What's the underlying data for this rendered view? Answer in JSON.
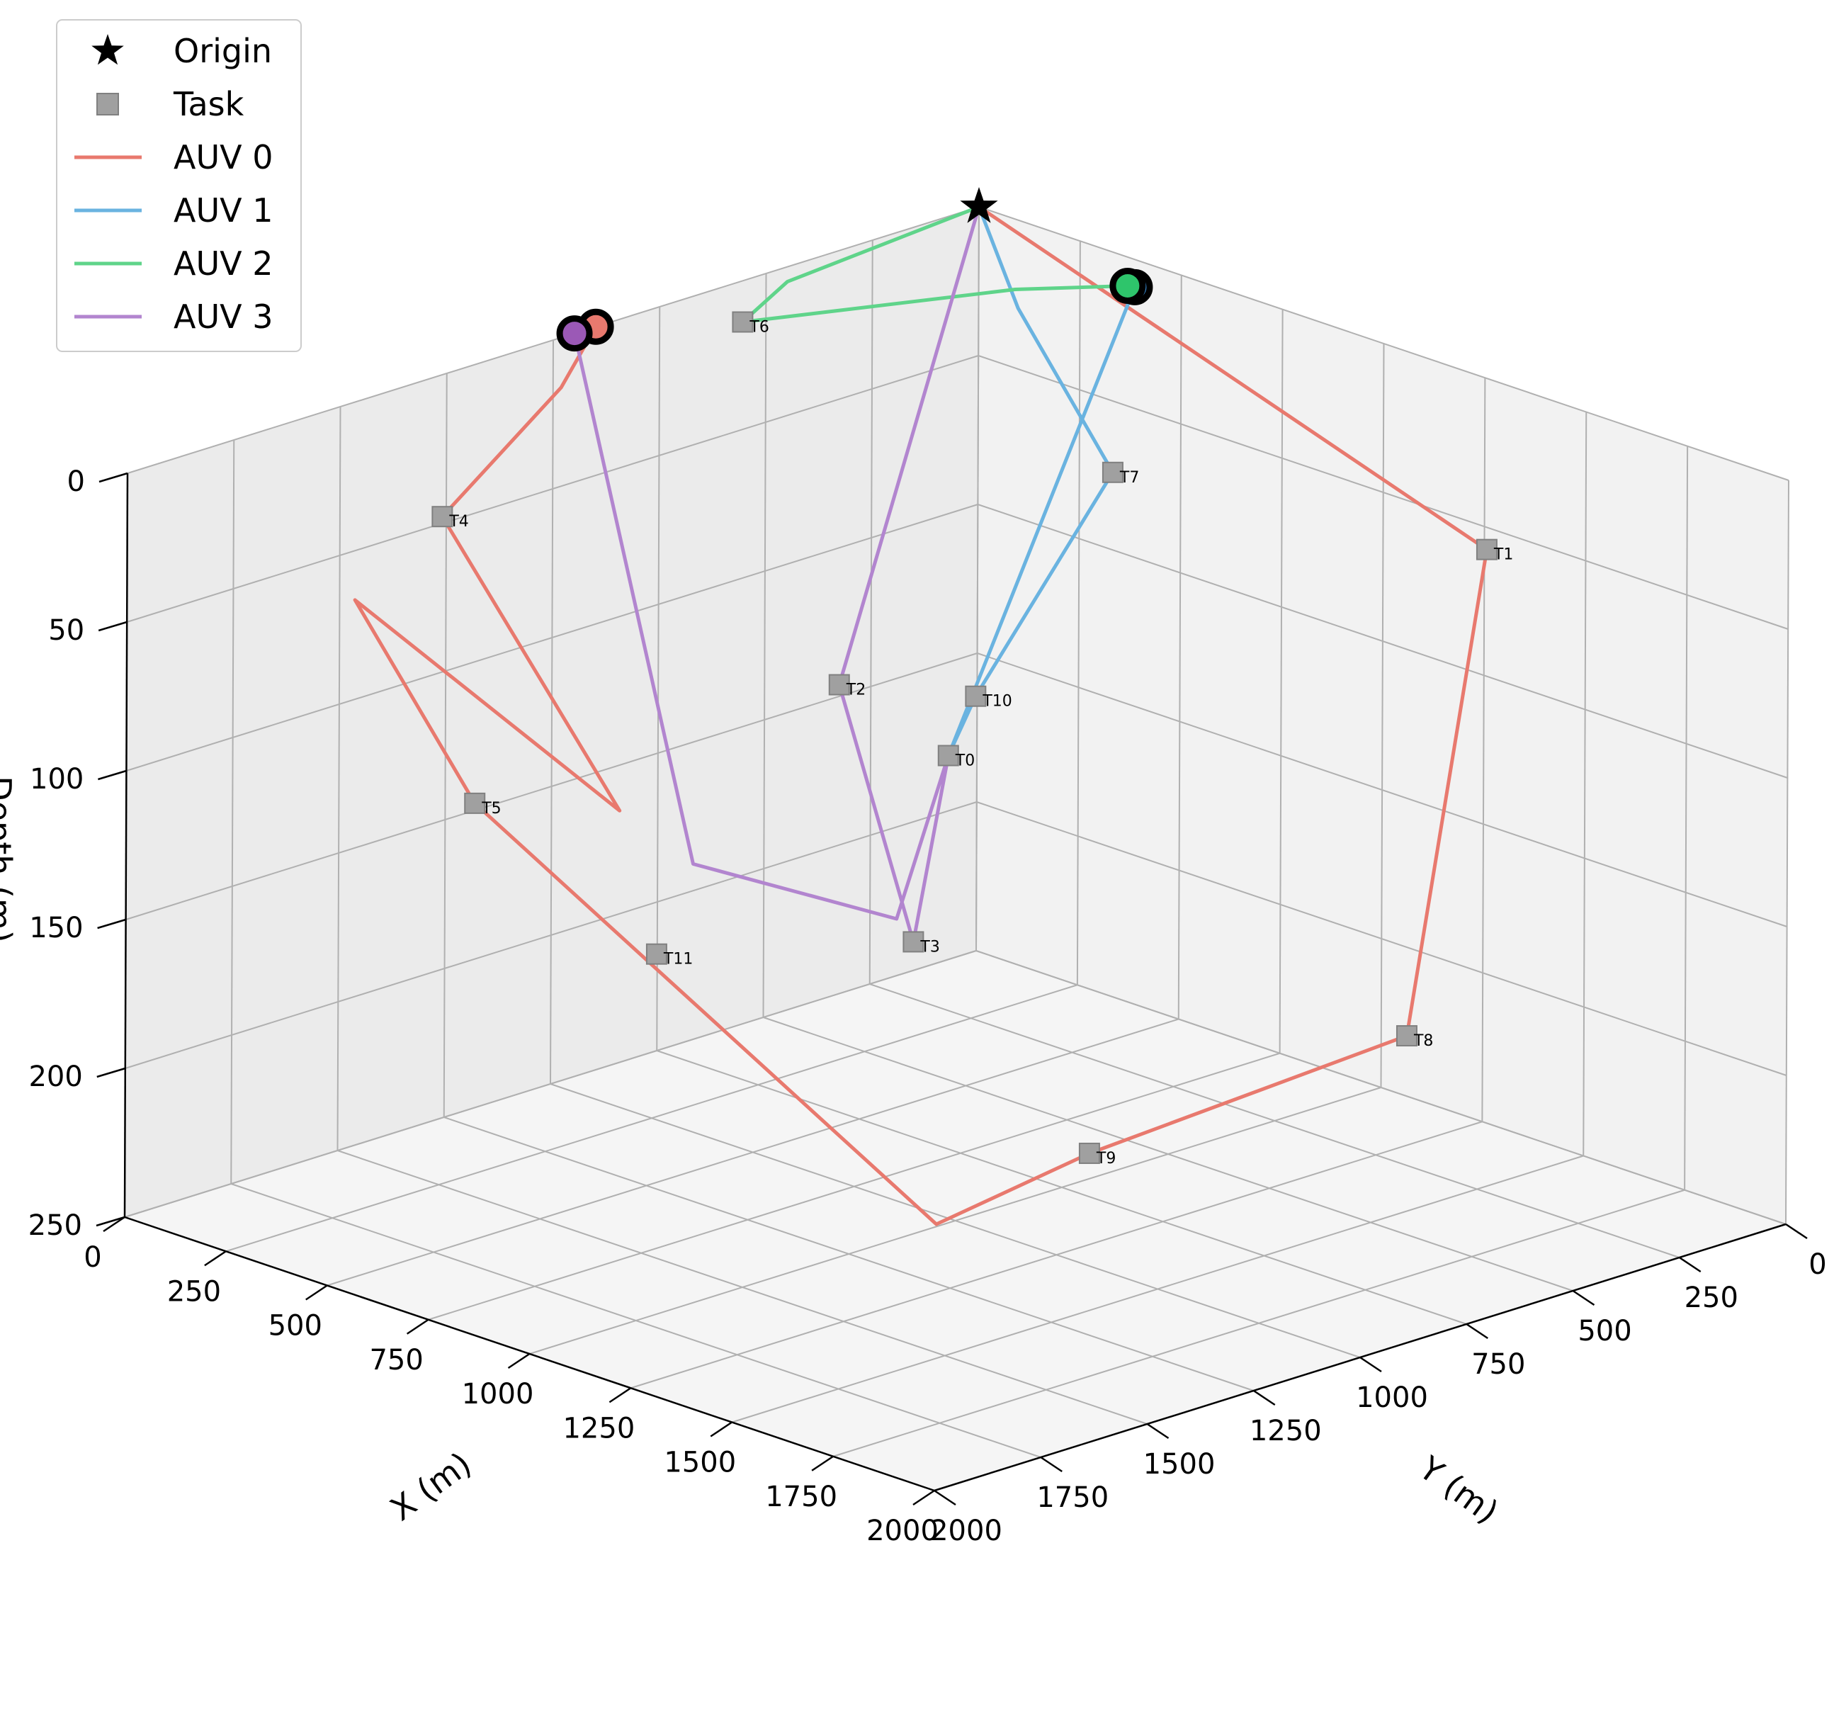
{
  "chart_data": {
    "type": "line3d",
    "xlabel": "X (m)",
    "ylabel": "Y (m)",
    "zlabel": "Depth (m)",
    "xlim": [
      0,
      2000
    ],
    "ylim": [
      0,
      2000
    ],
    "zlim": [
      0,
      250
    ],
    "z_inverted": true,
    "grid": true,
    "legend_position": "upper-left",
    "x_ticks": [
      0,
      250,
      500,
      750,
      1000,
      1250,
      1500,
      1750,
      2000
    ],
    "y_ticks": [
      0,
      250,
      500,
      750,
      1000,
      1250,
      1500,
      1750,
      2000
    ],
    "z_ticks": [
      0,
      50,
      100,
      150,
      200,
      250
    ],
    "legend": [
      {
        "label": "Origin",
        "marker": "star",
        "color": "#000000"
      },
      {
        "label": "Task",
        "marker": "square",
        "color": "#a0a0a0"
      },
      {
        "label": "AUV 0",
        "marker": "line",
        "color": "#e8796e"
      },
      {
        "label": "AUV 1",
        "marker": "line",
        "color": "#6ab3e0"
      },
      {
        "label": "AUV 2",
        "marker": "line",
        "color": "#5fd48a"
      },
      {
        "label": "AUV 3",
        "marker": "line",
        "color": "#b285cf"
      }
    ],
    "origin": {
      "label": "Origin",
      "x": 0,
      "y": 0,
      "z": 0
    },
    "tasks": [
      {
        "label": "T0",
        "x": 580,
        "y": 620,
        "z": 130
      },
      {
        "label": "T1",
        "x": 1340,
        "y": 80,
        "z": 50
      },
      {
        "label": "T2",
        "x": 520,
        "y": 820,
        "z": 100
      },
      {
        "label": "T3",
        "x": 1020,
        "y": 1120,
        "z": 150
      },
      {
        "label": "T4",
        "x": 200,
        "y": 1450,
        "z": 30
      },
      {
        "label": "T5",
        "x": 650,
        "y": 1800,
        "z": 90
      },
      {
        "label": "T6",
        "x": 100,
        "y": 650,
        "z": 5
      },
      {
        "label": "T7",
        "x": 490,
        "y": 150,
        "z": 60
      },
      {
        "label": "T8",
        "x": 1850,
        "y": 750,
        "z": 160
      },
      {
        "label": "T9",
        "x": 1750,
        "y": 1400,
        "z": 175
      },
      {
        "label": "T10",
        "x": 500,
        "y": 480,
        "z": 120
      },
      {
        "label": "T11",
        "x": 1100,
        "y": 1800,
        "z": 120
      }
    ],
    "series": [
      {
        "name": "AUV 0",
        "color": "#e8796e",
        "points": [
          [
            0,
            0,
            0
          ],
          [
            1340,
            80,
            50
          ],
          [
            1850,
            750,
            160
          ],
          [
            1750,
            1400,
            175
          ],
          [
            1950,
            1950,
            165
          ],
          [
            650,
            1800,
            90
          ],
          [
            300,
            1750,
            40
          ],
          [
            850,
            1650,
            90
          ],
          [
            200,
            1450,
            30
          ],
          [
            20,
            1000,
            15
          ],
          [
            0,
            900,
            0
          ]
        ]
      },
      {
        "name": "AUV 1",
        "color": "#6ab3e0",
        "points": [
          [
            0,
            0,
            0
          ],
          [
            150,
            50,
            25
          ],
          [
            490,
            150,
            60
          ],
          [
            500,
            480,
            120
          ],
          [
            580,
            620,
            130
          ],
          [
            490,
            100,
            0
          ]
        ]
      },
      {
        "name": "AUV 2",
        "color": "#5fd48a",
        "points": [
          [
            0,
            0,
            0
          ],
          [
            0,
            450,
            5
          ],
          [
            100,
            650,
            5
          ],
          [
            300,
            200,
            5
          ],
          [
            420,
            50,
            5
          ]
        ]
      },
      {
        "name": "AUV 3",
        "color": "#b285cf",
        "points": [
          [
            0,
            0,
            0
          ],
          [
            520,
            820,
            100
          ],
          [
            1020,
            1120,
            150
          ],
          [
            580,
            620,
            130
          ],
          [
            800,
            950,
            160
          ],
          [
            350,
            1000,
            160
          ],
          [
            0,
            950,
            0
          ]
        ]
      }
    ],
    "final_positions": [
      {
        "name": "AUV 0",
        "color": "#e8796e",
        "x": 0,
        "y": 900,
        "z": 0
      },
      {
        "name": "AUV 1",
        "color": "#3a8fd8",
        "x": 490,
        "y": 100,
        "z": 0
      },
      {
        "name": "AUV 2",
        "color": "#2ec56b",
        "x": 420,
        "y": 50,
        "z": 5
      },
      {
        "name": "AUV 3",
        "color": "#9b59b6",
        "x": 0,
        "y": 950,
        "z": 0
      }
    ]
  }
}
